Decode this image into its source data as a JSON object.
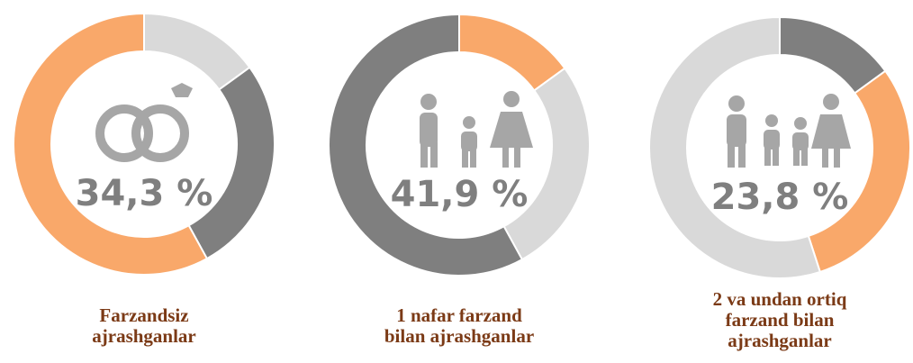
{
  "chart_data": [
    {
      "type": "donut",
      "values": [
        15,
        27,
        58
      ],
      "colors": [
        "#d9d9d9",
        "#7f7f7f",
        "#f9a86a"
      ],
      "center_value": 34.3,
      "center_label": "34,3 %",
      "caption": [
        "Farzandsiz",
        "ajrashganlar"
      ]
    },
    {
      "type": "donut",
      "values": [
        15,
        27,
        58
      ],
      "colors": [
        "#f9a86a",
        "#d9d9d9",
        "#7f7f7f"
      ],
      "center_value": 41.9,
      "center_label": "41,9 %",
      "caption": [
        "1 nafar farzand",
        "bilan ajrashganlar"
      ]
    },
    {
      "type": "donut",
      "values": [
        15,
        30,
        55
      ],
      "colors": [
        "#7f7f7f",
        "#f9a86a",
        "#d9d9d9"
      ],
      "center_value": 23.8,
      "center_label": "23,8 %",
      "caption": [
        "2 va undan ortiq",
        "farzand bilan",
        "ajrashganlar"
      ]
    }
  ]
}
